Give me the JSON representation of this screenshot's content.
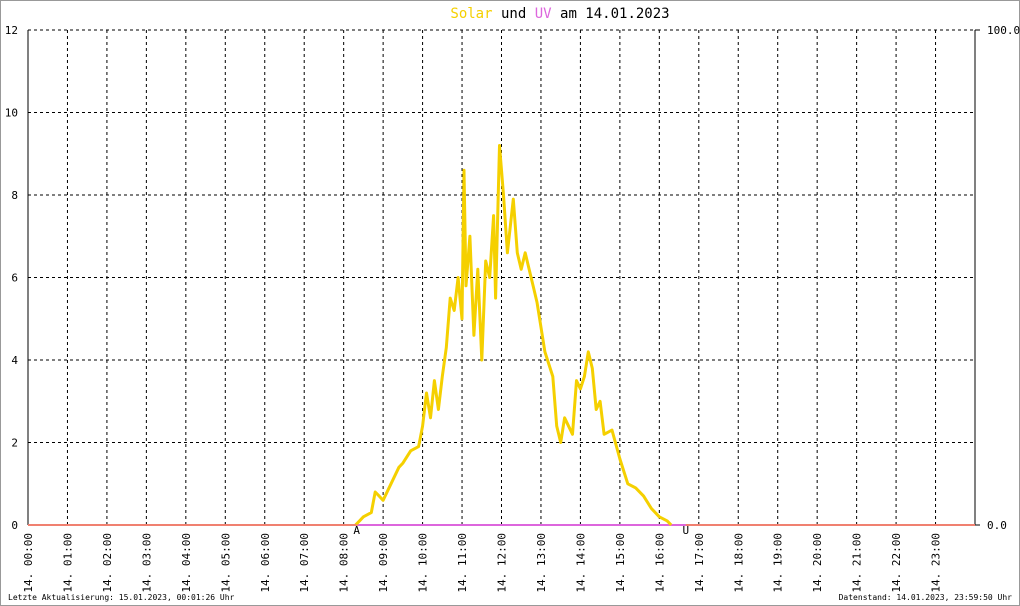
{
  "chart_data": {
    "type": "line",
    "title_parts": [
      "und",
      "am 14.01.2023"
    ],
    "footer_left": "Letzte Aktualisierung: 15.01.2023, 00:01:26 Uhr",
    "footer_right": "Datenstand: 14.01.2023, 23:59:50 Uhr",
    "xlim": [
      0,
      24
    ],
    "xticks": [
      {
        "value": 0,
        "label": "14. 00:00"
      },
      {
        "value": 1,
        "label": "14. 01:00"
      },
      {
        "value": 2,
        "label": "14. 02:00"
      },
      {
        "value": 3,
        "label": "14. 03:00"
      },
      {
        "value": 4,
        "label": "14. 04:00"
      },
      {
        "value": 5,
        "label": "14. 05:00"
      },
      {
        "value": 6,
        "label": "14. 06:00"
      },
      {
        "value": 7,
        "label": "14. 07:00"
      },
      {
        "value": 8,
        "label": "14. 08:00"
      },
      {
        "value": 9,
        "label": "14. 09:00"
      },
      {
        "value": 10,
        "label": "14. 10:00"
      },
      {
        "value": 11,
        "label": "14. 11:00"
      },
      {
        "value": 12,
        "label": "14. 12:00"
      },
      {
        "value": 13,
        "label": "14. 13:00"
      },
      {
        "value": 14,
        "label": "14. 14:00"
      },
      {
        "value": 15,
        "label": "14. 15:00"
      },
      {
        "value": 16,
        "label": "14. 16:00"
      },
      {
        "value": 17,
        "label": "14. 17:00"
      },
      {
        "value": 18,
        "label": "14. 18:00"
      },
      {
        "value": 19,
        "label": "14. 19:00"
      },
      {
        "value": 20,
        "label": "14. 20:00"
      },
      {
        "value": 21,
        "label": "14. 21:00"
      },
      {
        "value": 22,
        "label": "14. 22:00"
      },
      {
        "value": 23,
        "label": "14. 23:00"
      }
    ],
    "ylim": [
      0,
      12
    ],
    "yticks": [
      0,
      2,
      4,
      6,
      8,
      10,
      12
    ],
    "y2lim": [
      0,
      100
    ],
    "y2ticks": [
      {
        "value": 0,
        "label": "0.0"
      },
      {
        "value": 100,
        "label": "100.0"
      }
    ],
    "grid": true,
    "annotations": [
      {
        "text": "A",
        "x": 8.33,
        "color": "#cc0000"
      },
      {
        "text": "U",
        "x": 16.67,
        "color": "#cc0000"
      }
    ],
    "night_color": "#f08070",
    "series": [
      {
        "name": "UV",
        "color": "#dd66dd",
        "axis": "y2",
        "x": [
          0,
          24
        ],
        "values": [
          0,
          0
        ]
      },
      {
        "name": "Solar",
        "color": "#f5d000",
        "x": [
          8.3,
          8.4,
          8.5,
          8.7,
          8.8,
          8.9,
          9.0,
          9.2,
          9.4,
          9.5,
          9.7,
          9.9,
          10.0,
          10.1,
          10.2,
          10.3,
          10.4,
          10.5,
          10.6,
          10.7,
          10.8,
          10.9,
          11.0,
          11.05,
          11.1,
          11.2,
          11.3,
          11.4,
          11.5,
          11.6,
          11.7,
          11.8,
          11.85,
          11.95,
          12.05,
          12.15,
          12.3,
          12.4,
          12.5,
          12.6,
          12.8,
          12.9,
          13.1,
          13.3,
          13.4,
          13.5,
          13.6,
          13.8,
          13.9,
          14.0,
          14.1,
          14.2,
          14.3,
          14.4,
          14.5,
          14.6,
          14.8,
          15.0,
          15.2,
          15.4,
          15.6,
          15.8,
          16.0,
          16.2,
          16.3
        ],
        "values": [
          0,
          0.1,
          0.2,
          0.3,
          0.8,
          0.7,
          0.6,
          1.0,
          1.4,
          1.5,
          1.8,
          1.9,
          2.4,
          3.2,
          2.6,
          3.5,
          2.8,
          3.6,
          4.3,
          5.5,
          5.2,
          6.0,
          5.0,
          8.6,
          5.8,
          7.0,
          4.6,
          6.2,
          4.0,
          6.4,
          6.0,
          7.5,
          5.5,
          9.2,
          8.0,
          6.6,
          7.9,
          6.6,
          6.2,
          6.6,
          5.8,
          5.4,
          4.2,
          3.6,
          2.4,
          2.0,
          2.6,
          2.2,
          3.5,
          3.3,
          3.6,
          4.2,
          3.8,
          2.8,
          3.0,
          2.2,
          2.3,
          1.6,
          1.0,
          0.9,
          0.7,
          0.4,
          0.2,
          0.1,
          0
        ]
      }
    ]
  }
}
